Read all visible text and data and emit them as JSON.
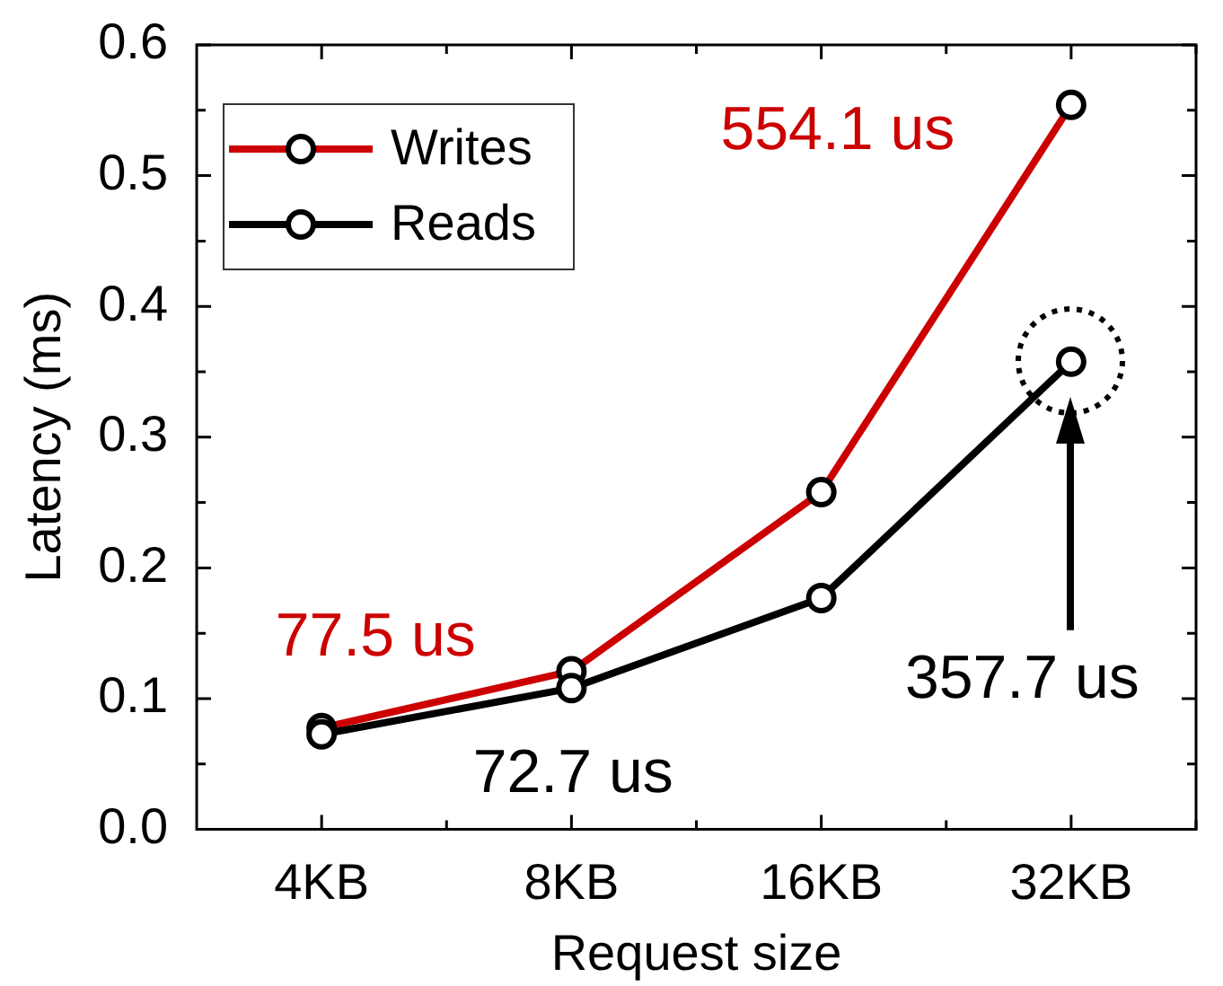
{
  "chart_data": {
    "type": "line",
    "xlabel": "Request size",
    "ylabel": "Latency (ms)",
    "categories": [
      "4KB",
      "8KB",
      "16KB",
      "32KB"
    ],
    "series": [
      {
        "name": "Writes",
        "color": "#cc0000",
        "values": [
          0.0775,
          0.121,
          0.258,
          0.5541
        ]
      },
      {
        "name": "Reads",
        "color": "#000000",
        "values": [
          0.0727,
          0.108,
          0.177,
          0.3577
        ]
      }
    ],
    "ylim": [
      0,
      0.6
    ],
    "yticks": [
      {
        "value": 0,
        "label": "0.0"
      },
      0.1,
      0.2,
      0.3,
      0.4,
      0.5,
      0.6
    ],
    "legend": "top left",
    "marker": "circle",
    "line_style": "solid",
    "annotations": [
      {
        "text": "77.5 us",
        "x": "4KB",
        "y": 0.0775
      },
      {
        "text": "72.7 us",
        "x": "4KB",
        "y": 0.0727
      },
      {
        "text": "554.1 us",
        "x": "32KB",
        "y": 0.5541
      },
      "357.7 us"
    ]
  }
}
